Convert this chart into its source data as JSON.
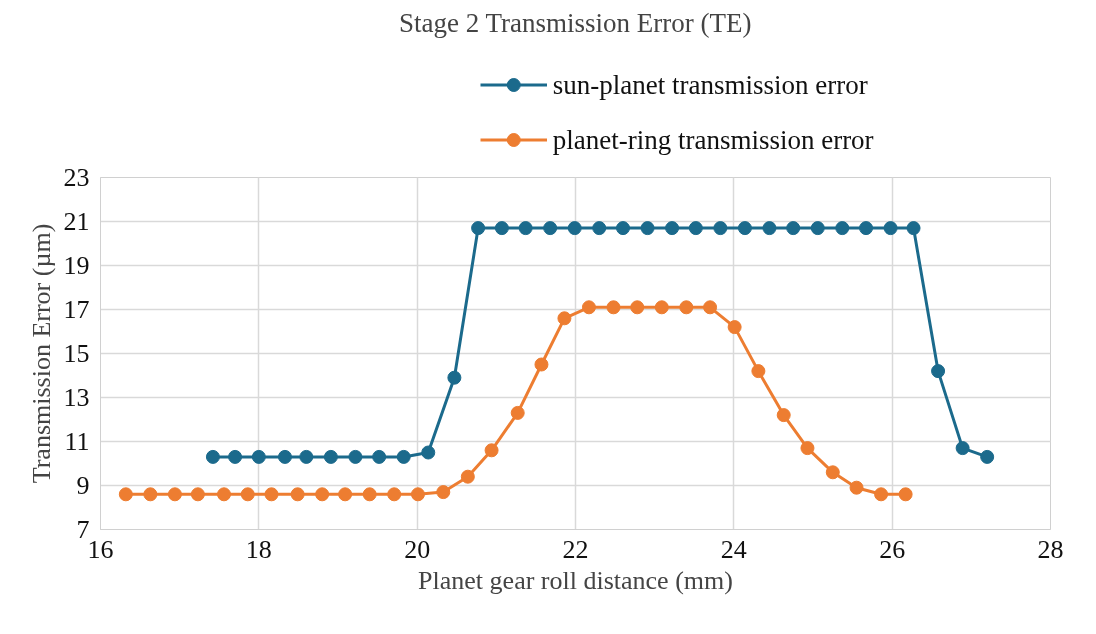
{
  "chart_data": {
    "type": "line",
    "title": "Stage 2 Transmission Error (TE)",
    "xlabel": "Planet gear roll distance (mm)",
    "ylabel": "Transmission Error (µm)",
    "xlim": [
      16,
      28
    ],
    "xticks": [
      16,
      18,
      20,
      22,
      24,
      26,
      28
    ],
    "ylim": [
      7,
      23
    ],
    "yticks": [
      7,
      9,
      11,
      13,
      15,
      17,
      19,
      21,
      23
    ],
    "grid": true,
    "legend": "top",
    "marker": "circle",
    "line_style": "solid",
    "series": [
      {
        "name": "sun-planet transmission error",
        "color": "#1b6a8c",
        "x": [
          17.42,
          17.7,
          18.0,
          18.33,
          18.6,
          18.91,
          19.22,
          19.52,
          19.83,
          20.14,
          20.47,
          20.77,
          21.07,
          21.37,
          21.68,
          21.99,
          22.3,
          22.6,
          22.91,
          23.22,
          23.52,
          23.83,
          24.14,
          24.45,
          24.75,
          25.06,
          25.37,
          25.67,
          25.98,
          26.27,
          26.58,
          26.89,
          27.2
        ],
        "values": [
          10.3,
          10.3,
          10.3,
          10.3,
          10.3,
          10.3,
          10.3,
          10.3,
          10.3,
          10.5,
          13.9,
          20.7,
          20.7,
          20.7,
          20.7,
          20.7,
          20.7,
          20.7,
          20.7,
          20.7,
          20.7,
          20.7,
          20.7,
          20.7,
          20.7,
          20.7,
          20.7,
          20.7,
          20.7,
          20.7,
          14.2,
          10.7,
          10.3
        ]
      },
      {
        "name": "planet-ring transmission error",
        "color": "#ed7d31",
        "x": [
          16.32,
          16.63,
          16.94,
          17.23,
          17.56,
          17.86,
          18.16,
          18.49,
          18.8,
          19.09,
          19.4,
          19.71,
          20.01,
          20.33,
          20.64,
          20.94,
          21.27,
          21.57,
          21.86,
          22.17,
          22.48,
          22.78,
          23.09,
          23.4,
          23.7,
          24.01,
          24.31,
          24.63,
          24.93,
          25.25,
          25.55,
          25.86,
          26.17
        ],
        "values": [
          8.6,
          8.6,
          8.6,
          8.6,
          8.6,
          8.6,
          8.6,
          8.6,
          8.6,
          8.6,
          8.6,
          8.6,
          8.6,
          8.7,
          9.4,
          10.6,
          12.3,
          14.5,
          16.6,
          17.1,
          17.1,
          17.1,
          17.1,
          17.1,
          17.1,
          16.2,
          14.2,
          12.2,
          10.7,
          9.6,
          8.9,
          8.6,
          8.6
        ]
      }
    ]
  }
}
